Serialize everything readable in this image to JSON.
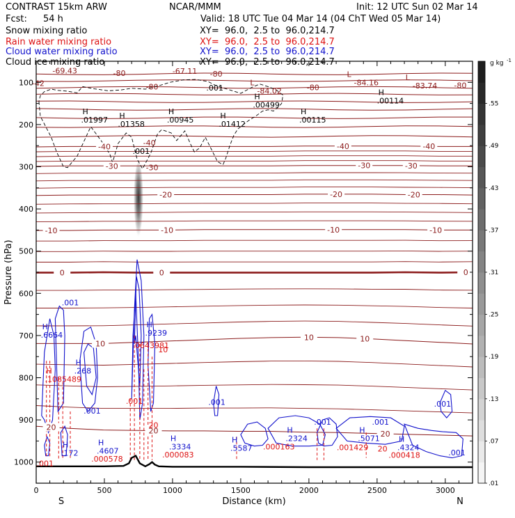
{
  "header": {
    "model": "CONTRAST 15km ARW",
    "org": "NCAR/MMM",
    "init": "Init: 12 UTC Sun 02 Mar 14",
    "fcst_label": "Fcst:",
    "fcst_value": "54 h",
    "valid": "Valid: 18 UTC Tue 04 Mar 14 (04 ChT Wed 05 Mar 14)"
  },
  "fields": [
    {
      "name": "Snow mixing ratio",
      "xy": "XY=  96.0,  2.5 to  96.0,214.7",
      "color": "#000000"
    },
    {
      "name": "Rain water mixing ratio",
      "xy": "XY=  96.0,  2.5 to  96.0,214.7",
      "color": "#dd1111"
    },
    {
      "name": "Cloud water mixing ratio",
      "xy": "XY=  96.0,  2.5 to  96.0,214.7",
      "color": "#1111cc"
    },
    {
      "name": "Cloud ice mixing ratio",
      "xy": "XY=  96.0,  2.5 to  96.0,214.7",
      "color": "#000000"
    }
  ],
  "colors": {
    "temperature": "#8b1a1a",
    "rain": "#dd1111",
    "cloud_water": "#1111cc",
    "cloud_ice": "#000000",
    "terrain": "#000000"
  },
  "chart_data": {
    "type": "cross-section",
    "xlabel": "Distance (km)",
    "ylabel": "Pressure (hPa)",
    "xlim": [
      0,
      3200
    ],
    "ylim": [
      1050,
      50
    ],
    "xticks": [
      0,
      500,
      1000,
      1500,
      2000,
      2500,
      3000
    ],
    "yticks": [
      100,
      200,
      300,
      400,
      500,
      600,
      700,
      800,
      900,
      1000
    ],
    "endpoints": {
      "left": "S",
      "right": "N"
    },
    "colorbar": {
      "unit": "g kg",
      "unit_exp": "-1",
      "ticks": [
        ".55",
        ".49",
        ".43",
        ".37",
        ".31",
        ".25",
        ".19",
        ".13",
        ".07",
        ".01"
      ],
      "values": [
        0.55,
        0.49,
        0.43,
        0.37,
        0.31,
        0.25,
        0.19,
        0.13,
        0.07,
        0.01
      ],
      "range": [
        0.01,
        0.61
      ]
    },
    "temperature_isotherms": [
      {
        "label": "-40",
        "p": [
          253,
          252,
          252,
          252,
          252,
          252,
          252,
          252,
          251,
          251,
          251,
          251,
          252,
          252
        ],
        "labels_at": [
          500,
          2250,
          2880
        ]
      },
      {
        "label": "-30",
        "p": [
          299,
          298,
          298,
          298,
          298,
          298,
          298,
          298,
          297,
          297,
          297,
          297,
          298,
          298
        ],
        "labels_at": [
          555,
          2405,
          2750
        ]
      },
      {
        "label": "-20",
        "p": [
          368,
          367,
          367,
          367,
          366,
          366,
          366,
          366,
          365,
          365,
          365,
          366,
          366,
          367
        ],
        "labels_at": [
          950,
          2200,
          2770
        ]
      },
      {
        "label": "-10",
        "p": [
          451,
          451,
          450,
          450,
          450,
          449,
          449,
          449,
          449,
          449,
          449,
          449,
          450,
          450
        ],
        "labels_at": [
          110,
          960,
          2180,
          2930
        ]
      },
      {
        "label": "0",
        "p": [
          551,
          551,
          550,
          551,
          551,
          551,
          551,
          551,
          551,
          551,
          551,
          550,
          551,
          550
        ],
        "labels_at": [
          190,
          920,
          3150
        ]
      },
      {
        "label": "10",
        "p": [
          719,
          719,
          719,
          716,
          713,
          710,
          707,
          705,
          704,
          705,
          708,
          712,
          716,
          720
        ],
        "labels_at": [
          470,
          2000,
          2410
        ]
      },
      {
        "label": "20",
        "p": [
          915,
          920,
          924,
          925,
          926,
          926,
          927,
          927,
          929,
          930,
          932,
          934,
          936,
          938
        ],
        "labels_at": [
          110,
          860,
          2560
        ]
      }
    ],
    "high_labels": [
      {
        "label": "H",
        "value": ".01997",
        "x": 380,
        "p": 190
      },
      {
        "label": "H",
        "value": ".01358",
        "x": 650,
        "p": 200
      },
      {
        "label": "H",
        "value": ".00945",
        "x": 1010,
        "p": 190
      },
      {
        "label": "H",
        "value": ".01412",
        "x": 1390,
        "p": 200
      },
      {
        "label": "H",
        "value": ".00499",
        "x": 1640,
        "p": 155
      },
      {
        "label": "H",
        "value": ".00115",
        "x": 1980,
        "p": 190
      },
      {
        "label": "H",
        "value": ".00114",
        "x": 2550,
        "p": 145
      },
      {
        "label": "H",
        "value": ".6664",
        "x": 85,
        "p": 700
      },
      {
        "label": "H",
        "value": ".268",
        "x": 330,
        "p": 785
      },
      {
        "label": "H",
        "value": ".9239",
        "x": 850,
        "p": 695
      },
      {
        "label": "H",
        "value": ".1085489",
        "x": 115,
        "p": 805
      },
      {
        "label": "H",
        "value": ".172",
        "x": 235,
        "p": 980
      },
      {
        "label": "H",
        "value": ".4607",
        "x": 495,
        "p": 975
      },
      {
        "label": "H",
        "value": ".3334",
        "x": 1025,
        "p": 965
      },
      {
        "label": "H",
        "value": ".5587",
        "x": 1475,
        "p": 968
      },
      {
        "label": "H",
        "value": ".2324",
        "x": 1880,
        "p": 945
      },
      {
        "label": "H",
        "value": ".5071",
        "x": 2410,
        "p": 945
      },
      {
        "label": "H",
        "value": ".4324",
        "x": 2700,
        "p": 967
      }
    ],
    "low_labels": [
      {
        "label": "L",
        "value": "-84.02",
        "x": 1620,
        "p": 120
      },
      {
        "label": "L",
        "value": "-84.16",
        "x": 2330,
        "p": 100
      },
      {
        "label": "L",
        "value": "-83.74",
        "x": 2760,
        "p": 108
      }
    ],
    "other_labels": [
      {
        "value": "-69.43",
        "x": 210,
        "p": 72,
        "series": "temperature"
      },
      {
        "value": "-80",
        "x": 610,
        "p": 78,
        "series": "temperature"
      },
      {
        "value": "-67.11",
        "x": 1090,
        "p": 73,
        "series": "temperature"
      },
      {
        "value": "-80",
        "x": 1320,
        "p": 80,
        "series": "temperature"
      },
      {
        "value": "-80",
        "x": 850,
        "p": 110,
        "series": "temperature"
      },
      {
        "value": "-80",
        "x": 2030,
        "p": 112,
        "series": "temperature"
      },
      {
        "value": "-80",
        "x": 3110,
        "p": 107,
        "series": "temperature"
      },
      {
        "value": "-42",
        "x": 15,
        "p": 102,
        "series": "temperature"
      },
      {
        "value": "-40",
        "x": 830,
        "p": 243,
        "series": "temperature"
      },
      {
        "value": "-30",
        "x": 850,
        "p": 302,
        "series": "temperature"
      },
      {
        "value": ".001",
        "x": 1310,
        "p": 113,
        "series": "cloud_ice"
      },
      {
        "value": ".001",
        "x": 770,
        "p": 263,
        "series": "cloud_ice"
      },
      {
        "value": "0",
        "x": 0,
        "p": 0,
        "series": "none"
      },
      {
        "value": ".001",
        "x": 250,
        "p": 622,
        "series": "cloud_water"
      },
      {
        "value": ".001",
        "x": 410,
        "p": 878,
        "series": "cloud_water"
      },
      {
        "value": ".001",
        "x": 1325,
        "p": 858,
        "series": "cloud_water"
      },
      {
        "value": ".001",
        "x": 2100,
        "p": 905,
        "series": "cloud_water"
      },
      {
        "value": ".001",
        "x": 2525,
        "p": 905,
        "series": "cloud_water"
      },
      {
        "value": ".001",
        "x": 2980,
        "p": 862,
        "series": "cloud_water"
      },
      {
        "value": ".001",
        "x": 3085,
        "p": 977,
        "series": "cloud_water"
      },
      {
        "value": "20",
        "x": 2540,
        "p": 968,
        "series": "rain"
      },
      {
        "value": ".001",
        "x": 720,
        "p": 855,
        "series": "rain"
      },
      {
        "value": ".001",
        "x": 65,
        "p": 1003,
        "series": "rain"
      },
      {
        "value": "20",
        "x": 860,
        "p": 912,
        "series": "rain"
      },
      {
        "value": ".000578",
        "x": 520,
        "p": 992,
        "series": "rain"
      },
      {
        "value": ".000083",
        "x": 1040,
        "p": 982,
        "series": "rain"
      },
      {
        "value": ".000163",
        "x": 1780,
        "p": 963,
        "series": "rain"
      },
      {
        "value": ".001429",
        "x": 2320,
        "p": 965,
        "series": "rain"
      },
      {
        "value": ".000418",
        "x": 2700,
        "p": 983,
        "series": "rain"
      },
      {
        "value": "10",
        "x": 930,
        "p": 733,
        "series": "rain"
      },
      {
        "value": "0643981",
        "x": 850,
        "p": 723,
        "series": "rain"
      }
    ],
    "terrain": {
      "x": [
        0,
        500,
        640,
        680,
        700,
        730,
        760,
        800,
        830,
        850,
        870,
        900,
        1000,
        1500,
        2000,
        2500,
        3000,
        3200
      ],
      "p": [
        1010,
        1010,
        1009,
        1003,
        990,
        985,
        1003,
        1010,
        1005,
        1000,
        1006,
        1010,
        1011,
        1011,
        1012,
        1012,
        1012,
        1012
      ]
    },
    "cloud_ice_outline": {
      "x": [
        20,
        30,
        70,
        110,
        150,
        200,
        230,
        300,
        350,
        400,
        480,
        540,
        560,
        600,
        660,
        700,
        740,
        780,
        840,
        890,
        920,
        990,
        1030,
        1090,
        1130,
        1160,
        1200,
        1240,
        1290,
        1330,
        1370,
        1390,
        1420,
        1450,
        1480,
        1520,
        1560,
        1610,
        1660,
        1700,
        1740,
        1770,
        1800,
        1810,
        1760,
        1700,
        1640,
        1580,
        1500,
        1400,
        1320,
        1260,
        1170,
        1080,
        980,
        900,
        800,
        700,
        620,
        530,
        420,
        340,
        300,
        230,
        160,
        110,
        60,
        30
      ],
      "p": [
        145,
        180,
        205,
        230,
        265,
        300,
        302,
        275,
        240,
        205,
        240,
        270,
        290,
        245,
        220,
        230,
        282,
        305,
        268,
        222,
        212,
        220,
        238,
        215,
        245,
        265,
        255,
        230,
        262,
        288,
        295,
        280,
        250,
        225,
        210,
        200,
        190,
        180,
        168,
        165,
        168,
        160,
        150,
        130,
        118,
        110,
        104,
        112,
        126,
        116,
        108,
        98,
        93,
        94,
        100,
        108,
        116,
        114,
        118,
        120,
        115,
        110,
        125,
        121,
        119,
        116,
        122,
        132
      ]
    },
    "snow_shading": {
      "x": 750,
      "p_top": 290,
      "p_bottom": 475,
      "peak_p": 365,
      "max": 0.4
    },
    "cloud_water_contours": [
      {
        "x": [
          700,
          720,
          740,
          770,
          790,
          780,
          760,
          750,
          730,
          710,
          700
        ],
        "p": [
          850,
          640,
          520,
          570,
          700,
          860,
          900,
          760,
          600,
          700,
          850
        ]
      },
      {
        "x": [
          720,
          735,
          755,
          770,
          760,
          745,
          730,
          720
        ],
        "p": [
          720,
          560,
          590,
          700,
          820,
          760,
          700,
          720
        ]
      },
      {
        "x": [
          820,
          830,
          850,
          870,
          860,
          840,
          820
        ],
        "p": [
          770,
          660,
          650,
          720,
          860,
          880,
          770
        ]
      },
      {
        "x": [
          40,
          60,
          100,
          130,
          140,
          120,
          90,
          60,
          40
        ],
        "p": [
          890,
          740,
          660,
          700,
          780,
          900,
          930,
          900,
          890
        ]
      },
      {
        "x": [
          140,
          170,
          200,
          210,
          200,
          160,
          140
        ],
        "p": [
          660,
          630,
          640,
          700,
          860,
          880,
          660
        ]
      },
      {
        "x": [
          320,
          350,
          400,
          440,
          450,
          430,
          380,
          340,
          320
        ],
        "p": [
          760,
          690,
          680,
          720,
          800,
          860,
          880,
          860,
          760
        ]
      },
      {
        "x": [
          350,
          380,
          420,
          440,
          410,
          370,
          350
        ],
        "p": [
          740,
          720,
          730,
          800,
          840,
          820,
          740
        ]
      },
      {
        "x": [
          1300,
          1320,
          1340,
          1330,
          1310,
          1300
        ],
        "p": [
          860,
          820,
          840,
          890,
          890,
          860
        ]
      },
      {
        "x": [
          1500,
          1550,
          1620,
          1680,
          1700,
          1660,
          1600,
          1530,
          1500
        ],
        "p": [
          935,
          910,
          905,
          920,
          945,
          960,
          962,
          955,
          935
        ]
      },
      {
        "x": [
          1700,
          1780,
          1900,
          2000,
          2080,
          2120,
          2100,
          2000,
          1880,
          1760,
          1700
        ],
        "p": [
          920,
          895,
          890,
          895,
          910,
          935,
          960,
          962,
          962,
          955,
          920
        ]
      },
      {
        "x": [
          2060,
          2100,
          2150,
          2200,
          2210,
          2170,
          2110,
          2070,
          2060
        ],
        "p": [
          930,
          900,
          895,
          910,
          940,
          960,
          962,
          955,
          930
        ]
      },
      {
        "x": [
          2200,
          2300,
          2450,
          2600,
          2700,
          2680,
          2560,
          2420,
          2280,
          2200
        ],
        "p": [
          920,
          895,
          892,
          895,
          915,
          950,
          958,
          955,
          950,
          920
        ]
      },
      {
        "x": [
          2700,
          2800,
          2900,
          2980,
          3080,
          3130,
          3120,
          3050,
          2960,
          2860,
          2760,
          2700
        ],
        "p": [
          910,
          920,
          925,
          928,
          930,
          945,
          985,
          990,
          985,
          975,
          960,
          910
        ]
      },
      {
        "x": [
          2960,
          3000,
          3040,
          3050,
          3010,
          2970,
          2960
        ],
        "p": [
          860,
          830,
          840,
          880,
          895,
          880,
          860
        ]
      },
      {
        "x": [
          60,
          80,
          100,
          90,
          70,
          60
        ],
        "p": [
          960,
          940,
          955,
          985,
          985,
          960
        ]
      },
      {
        "x": [
          180,
          210,
          230,
          220,
          190,
          180
        ],
        "p": [
          930,
          915,
          935,
          985,
          985,
          930
        ]
      }
    ],
    "rain_contours": [
      {
        "x": [
          75,
          75
        ],
        "p": [
          760,
          990
        ]
      },
      {
        "x": [
          100,
          100
        ],
        "p": [
          760,
          990
        ]
      },
      {
        "x": [
          165,
          165
        ],
        "p": [
          800,
          995
        ]
      },
      {
        "x": [
          195,
          195
        ],
        "p": [
          810,
          995
        ]
      },
      {
        "x": [
          250,
          250
        ],
        "p": [
          880,
          990
        ]
      },
      {
        "x": [
          690,
          690
        ],
        "p": [
          850,
          995
        ]
      },
      {
        "x": [
          720,
          720
        ],
        "p": [
          700,
          995
        ]
      },
      {
        "x": [
          760,
          760
        ],
        "p": [
          720,
          995
        ]
      },
      {
        "x": [
          790,
          790
        ],
        "p": [
          780,
          995
        ]
      },
      {
        "x": [
          820,
          820
        ],
        "p": [
          720,
          995
        ]
      },
      {
        "x": [
          850,
          850
        ],
        "p": [
          750,
          995
        ]
      },
      {
        "x": [
          1470,
          1470
        ],
        "p": [
          940,
          995
        ]
      },
      {
        "x": [
          2060,
          2060
        ],
        "p": [
          920,
          995
        ]
      },
      {
        "x": [
          2110,
          2110
        ],
        "p": [
          920,
          995
        ]
      },
      {
        "x": [
          2420,
          2420
        ],
        "p": [
          930,
          990
        ]
      }
    ]
  }
}
